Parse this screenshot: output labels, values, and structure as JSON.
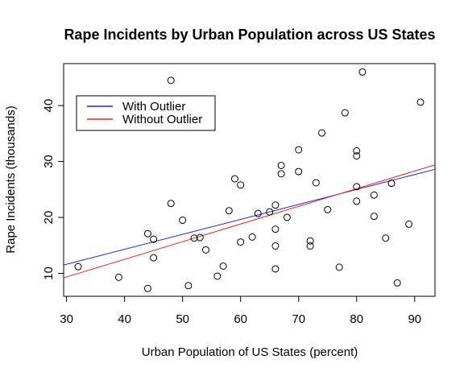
{
  "chart_data": {
    "type": "scatter",
    "title": "Rape Incidents by Urban Population across US States",
    "xlabel": "Urban Population of US States (percent)",
    "ylabel": "Rape Incidents (thousands)",
    "xlim": [
      29.5,
      93.5
    ],
    "ylim": [
      5.9,
      47.5
    ],
    "xticks": [
      30,
      40,
      50,
      60,
      70,
      80,
      90
    ],
    "yticks": [
      10,
      20,
      30,
      40
    ],
    "points": [
      [
        32,
        11.2
      ],
      [
        39,
        9.3
      ],
      [
        44,
        7.3
      ],
      [
        44,
        17.1
      ],
      [
        45,
        16.1
      ],
      [
        45,
        12.8
      ],
      [
        48,
        44.5
      ],
      [
        48,
        22.5
      ],
      [
        50,
        19.5
      ],
      [
        51,
        7.8
      ],
      [
        52,
        16.3
      ],
      [
        53,
        16.4
      ],
      [
        54,
        14.2
      ],
      [
        56,
        9.5
      ],
      [
        57,
        11.3
      ],
      [
        58,
        21.2
      ],
      [
        59,
        26.9
      ],
      [
        60,
        25.8
      ],
      [
        60,
        15.6
      ],
      [
        62,
        16.5
      ],
      [
        63,
        20.7
      ],
      [
        65,
        21.0
      ],
      [
        66,
        22.2
      ],
      [
        66,
        17.9
      ],
      [
        66,
        14.9
      ],
      [
        66,
        10.8
      ],
      [
        67,
        29.3
      ],
      [
        67,
        27.8
      ],
      [
        68,
        20.0
      ],
      [
        70,
        32.1
      ],
      [
        70,
        28.2
      ],
      [
        72,
        15.8
      ],
      [
        72,
        14.9
      ],
      [
        73,
        26.2
      ],
      [
        74,
        35.1
      ],
      [
        75,
        21.4
      ],
      [
        77,
        11.1
      ],
      [
        78,
        38.7
      ],
      [
        80,
        31.9
      ],
      [
        80,
        31.0
      ],
      [
        80,
        25.5
      ],
      [
        80,
        22.9
      ],
      [
        81,
        46.0
      ],
      [
        83,
        24.0
      ],
      [
        83,
        20.2
      ],
      [
        85,
        16.3
      ],
      [
        86,
        26.1
      ],
      [
        87,
        8.3
      ],
      [
        89,
        18.8
      ],
      [
        91,
        40.6
      ]
    ],
    "lines": [
      {
        "name": "With Outlier",
        "color": "#2222ee",
        "x": [
          29.5,
          93.5
        ],
        "y": [
          11.5,
          28.6
        ]
      },
      {
        "name": "Without Outlier",
        "color": "#ee2222",
        "x": [
          29.5,
          93.5
        ],
        "y": [
          9.2,
          29.4
        ]
      }
    ],
    "legend_position": "top-left",
    "grid": false
  }
}
